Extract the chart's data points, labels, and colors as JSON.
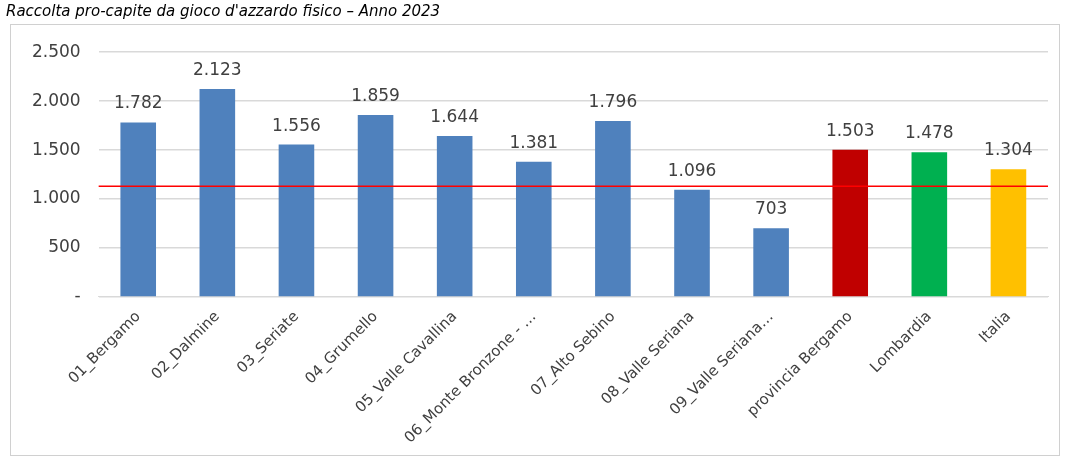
{
  "chart_data": {
    "type": "bar",
    "title": "Raccolta pro-capite da gioco d'azzardo fisico – Anno 2023",
    "categories": [
      "01_Bergamo",
      "02_Dalmine",
      "03_Seriate",
      "04_Grumello",
      "05_Valle Cavallina",
      "06_Monte Bronzone - …",
      "07_Alto Sebino",
      "08_Valle Seriana",
      "09_Valle Seriana…",
      "provincia Bergamo",
      "Lombardia",
      "Italia"
    ],
    "values": [
      1782,
      2123,
      1556,
      1859,
      1644,
      1381,
      1796,
      1096,
      703,
      1503,
      1478,
      1304
    ],
    "value_labels": [
      "1.782",
      "2.123",
      "1.556",
      "1.859",
      "1.644",
      "1.381",
      "1.796",
      "1.096",
      "703",
      "1.503",
      "1.478",
      "1.304"
    ],
    "colors": [
      "#4f81bd",
      "#4f81bd",
      "#4f81bd",
      "#4f81bd",
      "#4f81bd",
      "#4f81bd",
      "#4f81bd",
      "#4f81bd",
      "#4f81bd",
      "#c00000",
      "#00b050",
      "#ffc000"
    ],
    "ylim": [
      0,
      2500
    ],
    "yticks": [
      {
        "value": 0,
        "label": "-"
      },
      {
        "value": 500,
        "label": "500"
      },
      {
        "value": 1000,
        "label": "1.000"
      },
      {
        "value": 1500,
        "label": "1.500"
      },
      {
        "value": 2000,
        "label": "2.000"
      },
      {
        "value": 2500,
        "label": "2.500"
      }
    ],
    "ref_lines": [
      {
        "axis": "y",
        "value": 1130,
        "color": "#ff0000"
      }
    ],
    "grid": "y",
    "legend": false
  }
}
